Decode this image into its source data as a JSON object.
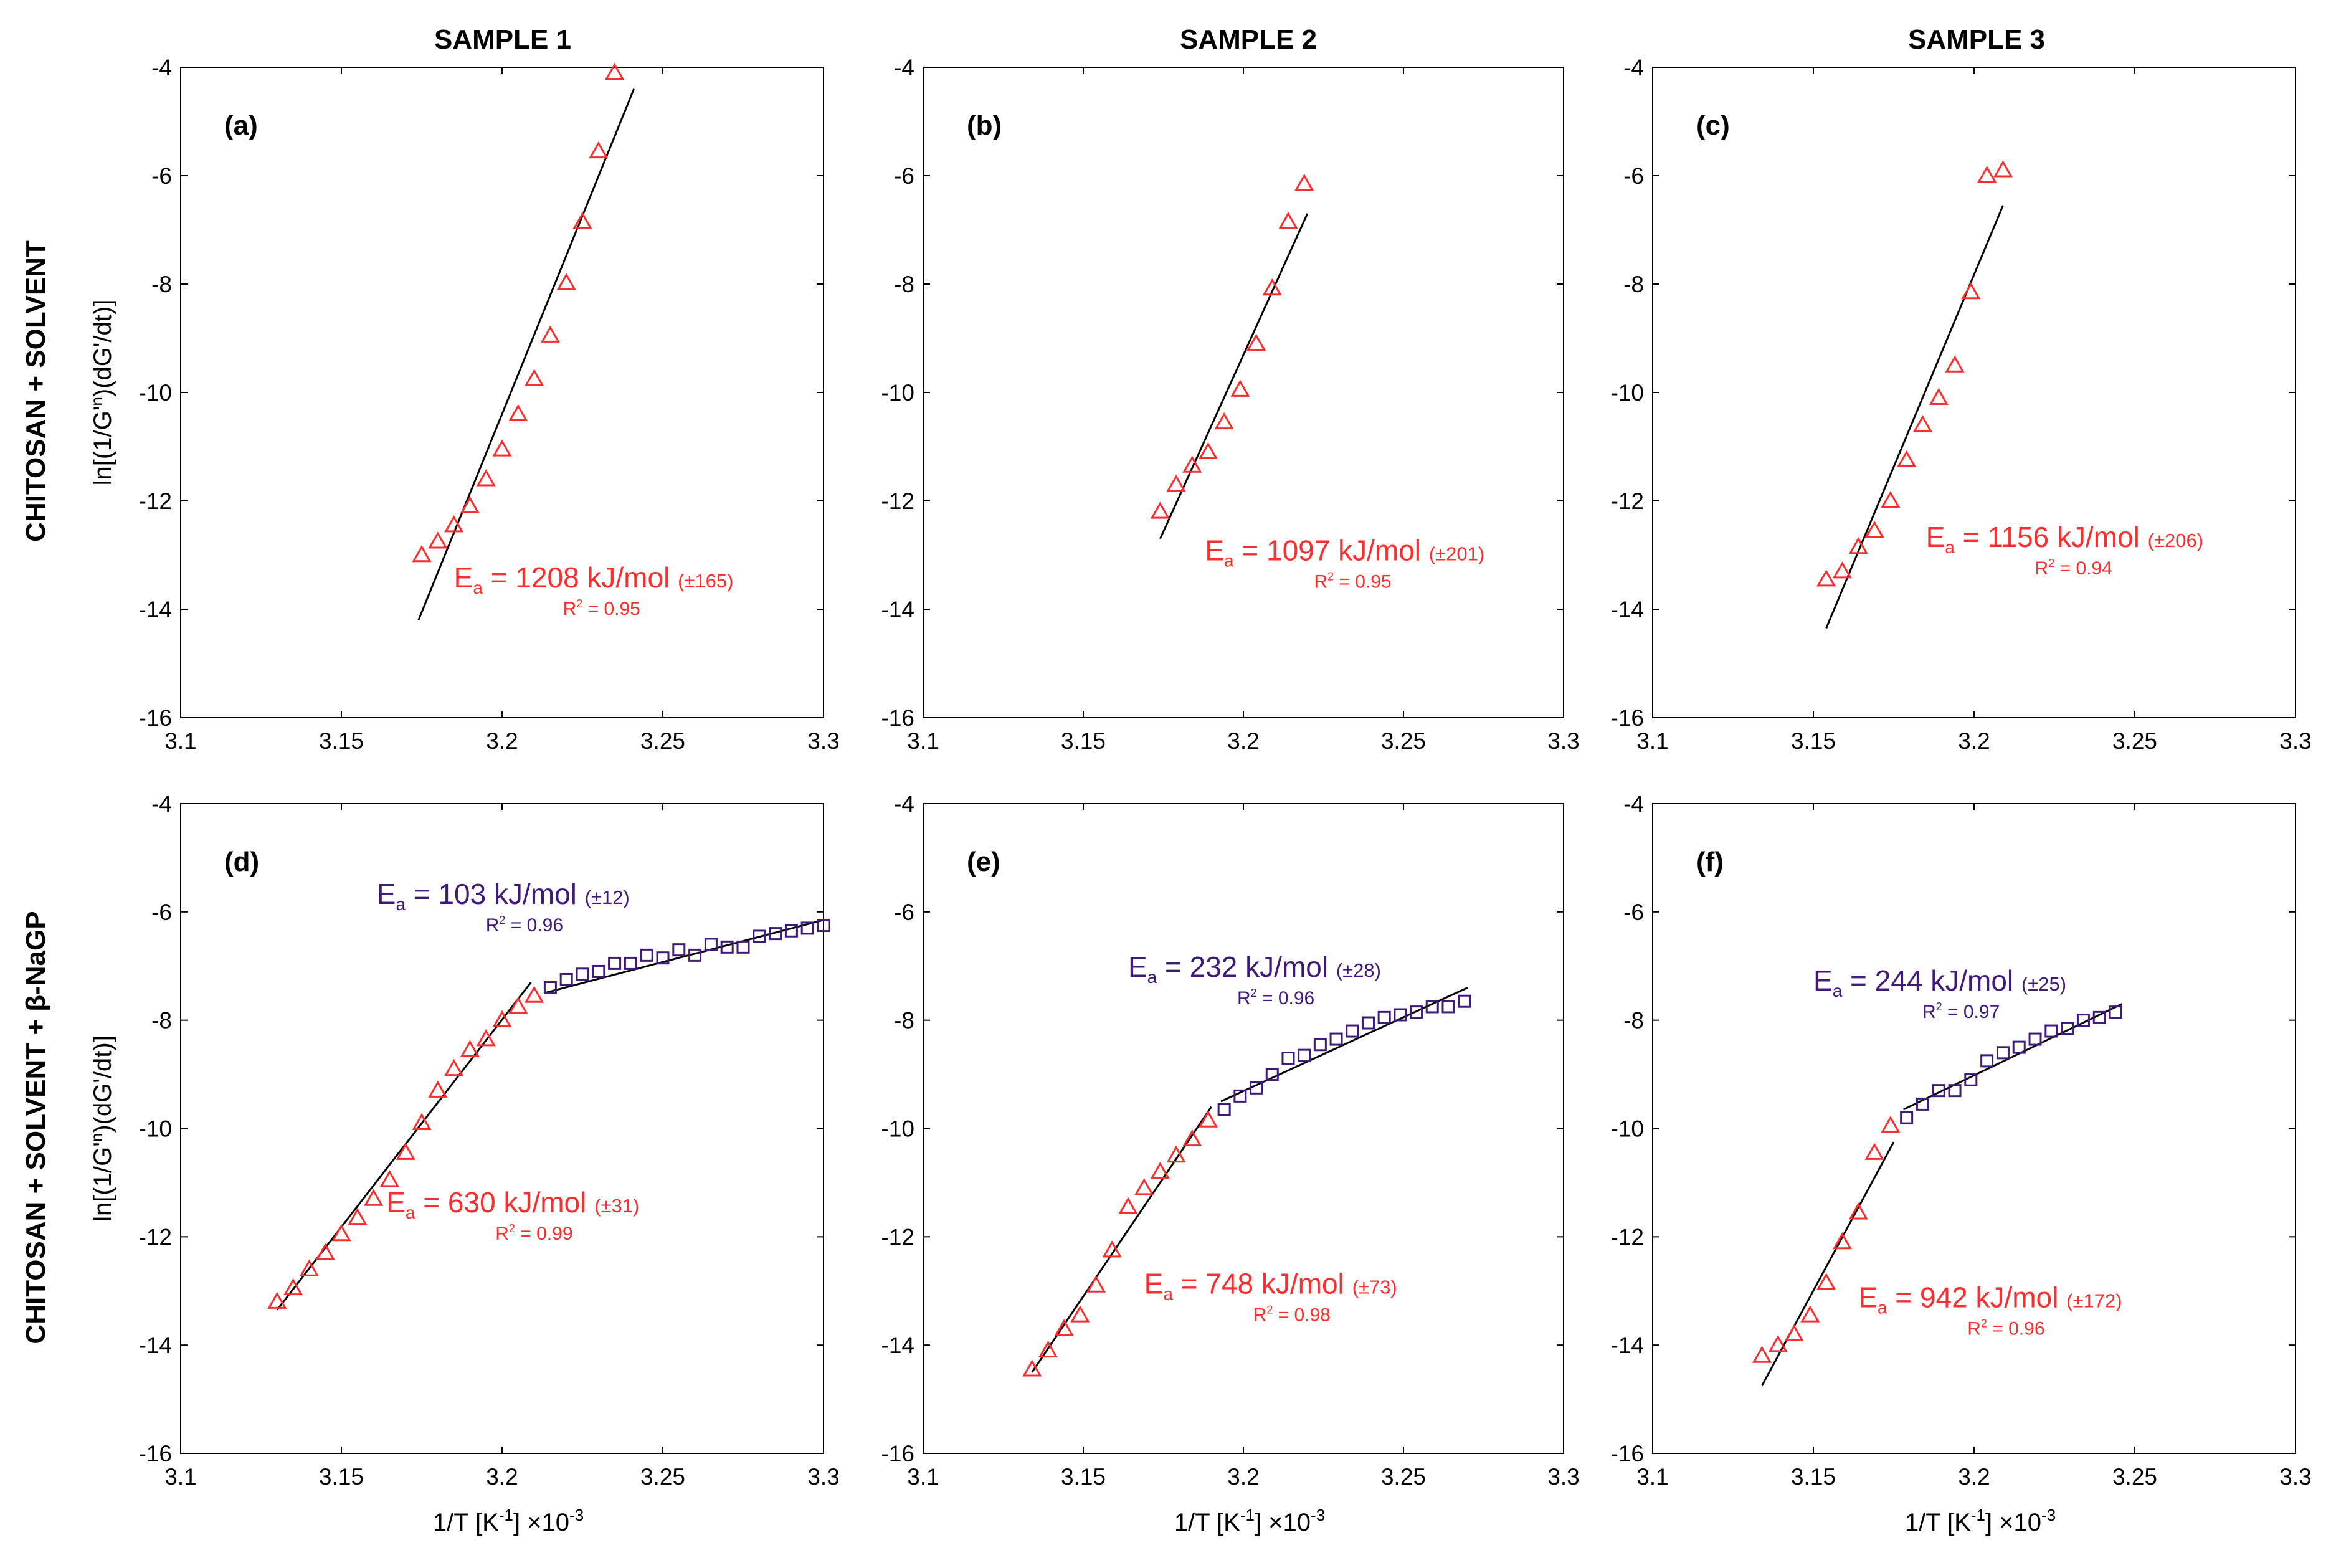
{
  "figure": {
    "column_titles": [
      "SAMPLE 1",
      "SAMPLE 2",
      "SAMPLE 3"
    ],
    "row_titles": [
      "CHITOSAN + SOLVENT",
      "CHITOSAN + SOLVENT + β-NaGP"
    ],
    "colors": {
      "red": "#ff2d2d",
      "purple": "#3f1a7a",
      "fit": "#000000"
    }
  },
  "chart_data": [
    {
      "id": "a",
      "label": "(a)",
      "type": "scatter",
      "xlim": [
        3.1,
        3.3
      ],
      "ylim": [
        -16,
        -4
      ],
      "xticks": [
        "3.1",
        "3.15",
        "3.2",
        "3.25",
        "3.3"
      ],
      "yticks": [
        "-4",
        "-6",
        "-8",
        "-10",
        "-12",
        "-14",
        "-16"
      ],
      "ylabel_main": "ln[(1/G'",
      "ylabel_sup": "n",
      "ylabel_tail": ")(dG'/dt)]",
      "xlabel_main": "",
      "xlabel_sup": "",
      "xlabel_close": "",
      "xexp_main": "",
      "xexp_sup": "",
      "series": [
        {
          "name": "triangles",
          "marker": "triangle",
          "color": "#ff2d2d",
          "x": [
            3.175,
            3.18,
            3.185,
            3.19,
            3.195,
            3.2,
            3.205,
            3.21,
            3.215,
            3.22,
            3.225,
            3.23,
            3.235
          ],
          "y": [
            -13.0,
            -12.75,
            -12.45,
            -12.1,
            -11.6,
            -11.05,
            -10.4,
            -9.75,
            -8.95,
            -7.98,
            -6.85,
            -5.55,
            -4.1
          ]
        }
      ],
      "fits": [
        {
          "color": "#000000",
          "x": [
            3.174,
            3.241
          ],
          "y": [
            -14.2,
            -4.4
          ]
        }
      ],
      "annotations": [
        {
          "color": "#ff2d2d",
          "x": 3.185,
          "y": -13.6,
          "main": "= 1208 kJ/mol ",
          "err": "(±165)",
          "r2": "= 0.95"
        }
      ]
    },
    {
      "id": "b",
      "label": "(b)",
      "type": "scatter",
      "xlim": [
        3.1,
        3.3
      ],
      "ylim": [
        -16,
        -4
      ],
      "xticks": [
        "3.1",
        "3.15",
        "3.2",
        "3.25",
        "3.3"
      ],
      "yticks": [
        "-4",
        "-6",
        "-8",
        "-10",
        "-12",
        "-14",
        "-16"
      ],
      "ylabel_main": "",
      "ylabel_sup": "",
      "ylabel_tail": "",
      "xlabel_main": "",
      "xlabel_sup": "",
      "xlabel_close": "",
      "xexp_main": "",
      "xexp_sup": "",
      "series": [
        {
          "name": "triangles",
          "marker": "triangle",
          "color": "#ff2d2d",
          "x": [
            3.174,
            3.179,
            3.184,
            3.189,
            3.194,
            3.199,
            3.204,
            3.209,
            3.214,
            3.219
          ],
          "y": [
            -12.2,
            -11.7,
            -11.35,
            -11.1,
            -10.55,
            -9.95,
            -9.1,
            -8.08,
            -6.85,
            -6.15
          ]
        }
      ],
      "fits": [
        {
          "color": "#000000",
          "x": [
            3.174,
            3.22
          ],
          "y": [
            -12.7,
            -6.7
          ]
        }
      ],
      "annotations": [
        {
          "color": "#ff2d2d",
          "x": 3.188,
          "y": -13.1,
          "main": "= 1097 kJ/mol ",
          "err": "(±201)",
          "r2": "= 0.95"
        }
      ]
    },
    {
      "id": "c",
      "label": "(c)",
      "type": "scatter",
      "xlim": [
        3.1,
        3.3
      ],
      "ylim": [
        -16,
        -4
      ],
      "xticks": [
        "3.1",
        "3.15",
        "3.2",
        "3.25",
        "3.3"
      ],
      "yticks": [
        "-4",
        "-6",
        "-8",
        "-10",
        "-12",
        "-14",
        "-16"
      ],
      "ylabel_main": "",
      "ylabel_sup": "",
      "ylabel_tail": "",
      "xlabel_main": "",
      "xlabel_sup": "",
      "xlabel_close": "",
      "xexp_main": "",
      "xexp_sup": "",
      "series": [
        {
          "name": "triangles",
          "marker": "triangle",
          "color": "#ff2d2d",
          "x": [
            3.154,
            3.159,
            3.164,
            3.169,
            3.174,
            3.179,
            3.184,
            3.189,
            3.194,
            3.199,
            3.204,
            3.209
          ],
          "y": [
            -13.45,
            -13.3,
            -12.85,
            -12.55,
            -12.0,
            -11.25,
            -10.6,
            -10.1,
            -9.5,
            -8.15,
            -6.0,
            -5.9
          ]
        }
      ],
      "fits": [
        {
          "color": "#000000",
          "x": [
            3.154,
            3.209
          ],
          "y": [
            -14.35,
            -6.55
          ]
        }
      ],
      "annotations": [
        {
          "color": "#ff2d2d",
          "x": 3.185,
          "y": -12.85,
          "main": "= 1156 kJ/mol ",
          "err": "(±206)",
          "r2": "= 0.94"
        }
      ]
    },
    {
      "id": "d",
      "label": "(d)",
      "type": "scatter",
      "xlim": [
        3.1,
        3.3
      ],
      "ylim": [
        -16,
        -4
      ],
      "xticks": [
        "3.1",
        "3.15",
        "3.2",
        "3.25",
        "3.3"
      ],
      "yticks": [
        "-4",
        "-6",
        "-8",
        "-10",
        "-12",
        "-14",
        "-16"
      ],
      "ylabel_main": "ln[(1/G'",
      "ylabel_sup": "n",
      "ylabel_tail": ")(dG'/dt)]",
      "xlabel_main": "1/T [K",
      "xlabel_sup": "-1",
      "xlabel_close": "]",
      "xexp_main": "×10",
      "xexp_sup": "-3",
      "series": [
        {
          "name": "triangles",
          "marker": "triangle",
          "color": "#ff2d2d",
          "x": [
            3.13,
            3.135,
            3.14,
            3.145,
            3.15,
            3.155,
            3.16,
            3.165,
            3.17,
            3.175,
            3.18,
            3.185,
            3.19,
            3.195,
            3.2,
            3.205,
            3.21
          ],
          "y": [
            -13.2,
            -12.95,
            -12.6,
            -12.3,
            -11.95,
            -11.65,
            -11.3,
            -10.95,
            -10.45,
            -9.9,
            -9.3,
            -8.9,
            -8.55,
            -8.35,
            -8.0,
            -7.75,
            -7.55
          ]
        },
        {
          "name": "squares",
          "marker": "square",
          "color": "#3f1a7a",
          "x": [
            3.215,
            3.22,
            3.225,
            3.23,
            3.235,
            3.24,
            3.245,
            3.25,
            3.255,
            3.26,
            3.265,
            3.27,
            3.275,
            3.28,
            3.285,
            3.29,
            3.295,
            3.3
          ],
          "y": [
            -7.4,
            -7.25,
            -7.15,
            -7.1,
            -6.95,
            -6.95,
            -6.8,
            -6.85,
            -6.7,
            -6.8,
            -6.6,
            -6.65,
            -6.65,
            -6.45,
            -6.4,
            -6.35,
            -6.3,
            -6.25
          ]
        }
      ],
      "fits": [
        {
          "color": "#000000",
          "x": [
            3.13,
            3.209
          ],
          "y": [
            -13.35,
            -7.3
          ]
        },
        {
          "color": "#000000",
          "x": [
            3.213,
            3.3
          ],
          "y": [
            -7.5,
            -6.15
          ]
        }
      ],
      "annotations": [
        {
          "color": "#3f1a7a",
          "x": 3.161,
          "y": -5.85,
          "main": "= 103 kJ/mol ",
          "err": "(±12)",
          "r2": "= 0.96"
        },
        {
          "color": "#ff2d2d",
          "x": 3.164,
          "y": -11.55,
          "main": "= 630 kJ/mol ",
          "err": "(±31)",
          "r2": "= 0.99"
        }
      ]
    },
    {
      "id": "e",
      "label": "(e)",
      "type": "scatter",
      "xlim": [
        3.1,
        3.3
      ],
      "ylim": [
        -16,
        -4
      ],
      "xticks": [
        "3.1",
        "3.15",
        "3.2",
        "3.25",
        "3.3"
      ],
      "yticks": [
        "-4",
        "-6",
        "-8",
        "-10",
        "-12",
        "-14",
        "-16"
      ],
      "ylabel_main": "",
      "ylabel_sup": "",
      "ylabel_tail": "",
      "xlabel_main": "1/T [K",
      "xlabel_sup": "-1",
      "xlabel_close": "]",
      "xexp_main": "×10",
      "xexp_sup": "-3",
      "series": [
        {
          "name": "triangles",
          "marker": "triangle",
          "color": "#ff2d2d",
          "x": [
            3.134,
            3.139,
            3.144,
            3.149,
            3.154,
            3.159,
            3.164,
            3.169,
            3.174,
            3.179,
            3.184,
            3.189
          ],
          "y": [
            -14.45,
            -14.1,
            -13.7,
            -13.45,
            -12.9,
            -12.25,
            -11.45,
            -11.1,
            -10.8,
            -10.5,
            -10.2,
            -9.85
          ]
        },
        {
          "name": "squares",
          "marker": "square",
          "color": "#3f1a7a",
          "x": [
            3.194,
            3.199,
            3.204,
            3.209,
            3.214,
            3.219,
            3.224,
            3.229,
            3.234,
            3.239,
            3.244,
            3.249,
            3.254,
            3.259,
            3.264,
            3.269
          ],
          "y": [
            -9.65,
            -9.4,
            -9.25,
            -9.0,
            -8.7,
            -8.65,
            -8.45,
            -8.35,
            -8.2,
            -8.05,
            -7.95,
            -7.9,
            -7.85,
            -7.75,
            -7.75,
            -7.65
          ]
        }
      ],
      "fits": [
        {
          "color": "#000000",
          "x": [
            3.134,
            3.19
          ],
          "y": [
            -14.5,
            -9.6
          ]
        },
        {
          "color": "#000000",
          "x": [
            3.193,
            3.27
          ],
          "y": [
            -9.5,
            -7.4
          ]
        }
      ],
      "annotations": [
        {
          "color": "#3f1a7a",
          "x": 3.164,
          "y": -7.2,
          "main": "= 232 kJ/mol ",
          "err": "(±28)",
          "r2": "= 0.96"
        },
        {
          "color": "#ff2d2d",
          "x": 3.169,
          "y": -13.05,
          "main": "= 748 kJ/mol ",
          "err": "(±73)",
          "r2": "= 0.98"
        }
      ]
    },
    {
      "id": "f",
      "label": "(f)",
      "type": "scatter",
      "xlim": [
        3.1,
        3.3
      ],
      "ylim": [
        -16,
        -4
      ],
      "xticks": [
        "3.1",
        "3.15",
        "3.2",
        "3.25",
        "3.3"
      ],
      "yticks": [
        "-4",
        "-6",
        "-8",
        "-10",
        "-12",
        "-14",
        "-16"
      ],
      "ylabel_main": "",
      "ylabel_sup": "",
      "ylabel_tail": "",
      "xlabel_main": "1/T [K",
      "xlabel_sup": "-1",
      "xlabel_close": "]",
      "xexp_main": "×10",
      "xexp_sup": "-3",
      "series": [
        {
          "name": "triangles",
          "marker": "triangle",
          "color": "#ff2d2d",
          "x": [
            3.134,
            3.139,
            3.144,
            3.149,
            3.154,
            3.159,
            3.164,
            3.169,
            3.174
          ],
          "y": [
            -14.2,
            -14.0,
            -13.8,
            -13.45,
            -12.85,
            -12.1,
            -11.55,
            -10.45,
            -9.95
          ]
        },
        {
          "name": "squares",
          "marker": "square",
          "color": "#3f1a7a",
          "x": [
            3.179,
            3.184,
            3.189,
            3.194,
            3.199,
            3.204,
            3.209,
            3.214,
            3.219,
            3.224,
            3.229,
            3.234,
            3.239,
            3.244
          ],
          "y": [
            -9.8,
            -9.55,
            -9.3,
            -9.3,
            -9.1,
            -8.75,
            -8.6,
            -8.5,
            -8.35,
            -8.2,
            -8.15,
            -8.0,
            -7.95,
            -7.85
          ]
        }
      ],
      "fits": [
        {
          "color": "#000000",
          "x": [
            3.134,
            3.175
          ],
          "y": [
            -14.75,
            -10.25
          ]
        },
        {
          "color": "#000000",
          "x": [
            3.178,
            3.246
          ],
          "y": [
            -9.65,
            -7.7
          ]
        }
      ],
      "annotations": [
        {
          "color": "#3f1a7a",
          "x": 3.15,
          "y": -7.45,
          "main": "= 244 kJ/mol ",
          "err": "(±25)",
          "r2": "= 0.97"
        },
        {
          "color": "#ff2d2d",
          "x": 3.164,
          "y": -13.3,
          "main": "= 942 kJ/mol ",
          "err": "(±172)",
          "r2": "= 0.96"
        }
      ]
    }
  ]
}
